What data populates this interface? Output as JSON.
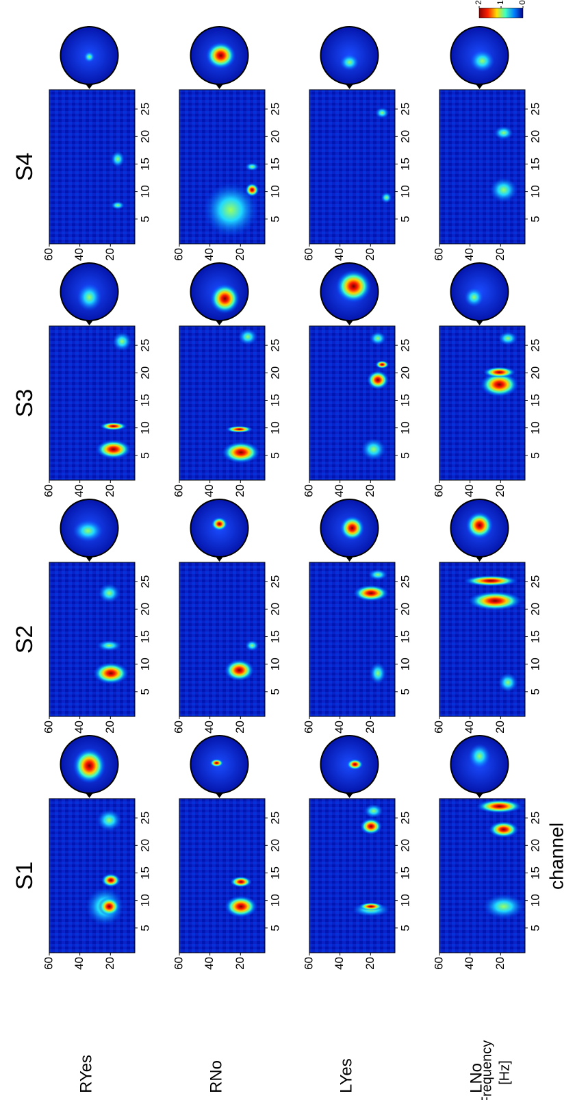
{
  "chart_data": {
    "type": "heatmap-grid",
    "columns": [
      "S1",
      "S2",
      "S3",
      "S4"
    ],
    "rows": [
      "RYes",
      "RNo",
      "LYes",
      "LNo"
    ],
    "xlabel": "channel",
    "ylabel": [
      "Frequency",
      "[Hz]"
    ],
    "xlim": [
      0.5,
      28.5
    ],
    "xticks": [
      5,
      10,
      15,
      20,
      25
    ],
    "ylim": [
      4,
      60
    ],
    "yticks": [
      60,
      40,
      20
    ],
    "colorbar_lim": [
      0,
      2
    ],
    "colorbar_ticks": [
      2,
      1,
      0
    ]
  }
}
